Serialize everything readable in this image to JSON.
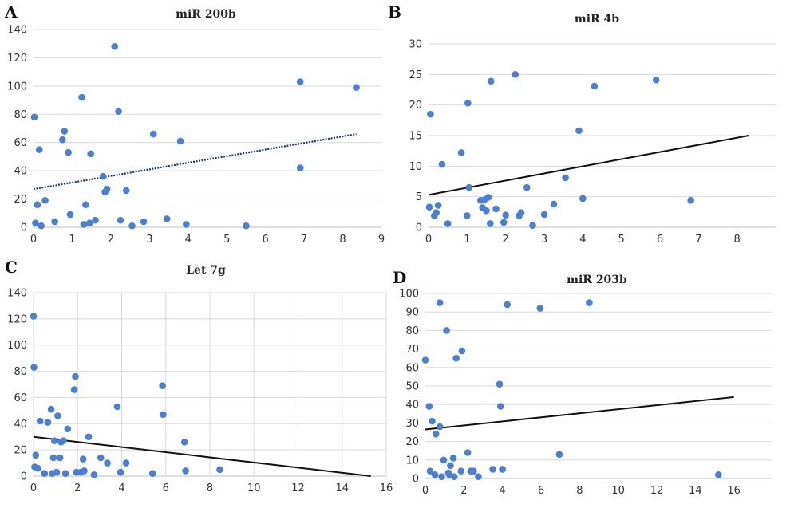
{
  "chart_data": [
    {
      "panel": "A",
      "type": "scatter",
      "title": "miR 200b",
      "xlabel": "",
      "ylabel": "",
      "xlim": [
        0,
        9
      ],
      "ylim": [
        0,
        140
      ],
      "xticks": [
        0,
        1,
        2,
        3,
        4,
        5,
        6,
        7,
        8,
        9
      ],
      "yticks": [
        0,
        20,
        40,
        60,
        80,
        100,
        120,
        140
      ],
      "grid": "horizontal",
      "trendline": {
        "style": "dotted",
        "color": "#1f3864",
        "points": [
          [
            0,
            27
          ],
          [
            8.35,
            66
          ]
        ]
      },
      "series": [
        {
          "color": "#4a7fd4",
          "points": [
            [
              0.02,
              78
            ],
            [
              0.05,
              3
            ],
            [
              0.1,
              16
            ],
            [
              0.15,
              55
            ],
            [
              0.2,
              1
            ],
            [
              0.3,
              19
            ],
            [
              0.55,
              4
            ],
            [
              0.75,
              62
            ],
            [
              0.8,
              68
            ],
            [
              0.9,
              53
            ],
            [
              0.95,
              9
            ],
            [
              1.25,
              92
            ],
            [
              1.3,
              2
            ],
            [
              1.35,
              16
            ],
            [
              1.45,
              3
            ],
            [
              1.48,
              52
            ],
            [
              1.6,
              5
            ],
            [
              1.8,
              36
            ],
            [
              1.85,
              25
            ],
            [
              1.9,
              27
            ],
            [
              2.1,
              128
            ],
            [
              2.2,
              82
            ],
            [
              2.25,
              5
            ],
            [
              2.4,
              26
            ],
            [
              2.55,
              1
            ],
            [
              2.85,
              4
            ],
            [
              3.1,
              66
            ],
            [
              3.45,
              6
            ],
            [
              3.8,
              61
            ],
            [
              3.95,
              2
            ],
            [
              5.5,
              1
            ],
            [
              6.9,
              103
            ],
            [
              6.9,
              42
            ],
            [
              8.35,
              99
            ]
          ]
        }
      ]
    },
    {
      "panel": "B",
      "type": "scatter",
      "title": "miR 4b",
      "xlabel": "",
      "ylabel": "",
      "xlim": [
        0,
        9
      ],
      "ylim": [
        0,
        30
      ],
      "xticks": [
        0,
        1,
        2,
        3,
        4,
        5,
        6,
        7,
        8
      ],
      "yticks": [
        0,
        5,
        10,
        15,
        20,
        25,
        30
      ],
      "grid": "horizontal",
      "trendline": {
        "style": "solid",
        "color": "#111111",
        "points": [
          [
            0,
            5.3
          ],
          [
            8.3,
            15
          ]
        ]
      },
      "series": [
        {
          "color": "#4a7fd4",
          "points": [
            [
              0.02,
              3.3
            ],
            [
              0.05,
              18.5
            ],
            [
              0.15,
              1.9
            ],
            [
              0.2,
              2.4
            ],
            [
              0.25,
              3.6
            ],
            [
              0.35,
              10.3
            ],
            [
              0.5,
              0.6
            ],
            [
              0.85,
              12.2
            ],
            [
              1.0,
              1.9
            ],
            [
              1.02,
              20.3
            ],
            [
              1.05,
              6.5
            ],
            [
              1.35,
              4.4
            ],
            [
              1.4,
              3.2
            ],
            [
              1.45,
              4.5
            ],
            [
              1.5,
              2.7
            ],
            [
              1.55,
              4.9
            ],
            [
              1.6,
              0.6
            ],
            [
              1.62,
              23.9
            ],
            [
              1.75,
              3.0
            ],
            [
              1.95,
              0.8
            ],
            [
              2.0,
              2.0
            ],
            [
              2.25,
              25.0
            ],
            [
              2.35,
              1.9
            ],
            [
              2.4,
              2.4
            ],
            [
              2.55,
              6.5
            ],
            [
              2.7,
              0.3
            ],
            [
              3.0,
              2.1
            ],
            [
              3.25,
              3.8
            ],
            [
              3.55,
              8.1
            ],
            [
              3.9,
              15.8
            ],
            [
              4.0,
              4.7
            ],
            [
              4.3,
              23.1
            ],
            [
              5.9,
              24.1
            ],
            [
              6.8,
              4.4
            ]
          ]
        }
      ]
    },
    {
      "panel": "C",
      "type": "scatter",
      "title": "Let 7g",
      "xlabel": "",
      "ylabel": "",
      "xlim": [
        0,
        16
      ],
      "ylim": [
        0,
        140
      ],
      "xticks": [
        0,
        2,
        4,
        6,
        8,
        10,
        12,
        14,
        16
      ],
      "yticks": [
        0,
        20,
        40,
        60,
        80,
        100,
        120,
        140
      ],
      "grid": "both",
      "trendline": {
        "style": "solid",
        "color": "#111111",
        "points": [
          [
            0,
            30
          ],
          [
            15.3,
            0
          ]
        ]
      },
      "series": [
        {
          "color": "#4a7fd4",
          "points": [
            [
              0.0,
              122
            ],
            [
              0.02,
              83
            ],
            [
              0.05,
              7
            ],
            [
              0.1,
              16
            ],
            [
              0.2,
              6
            ],
            [
              0.3,
              42
            ],
            [
              0.5,
              2
            ],
            [
              0.65,
              41
            ],
            [
              0.8,
              51
            ],
            [
              0.85,
              2
            ],
            [
              0.9,
              14
            ],
            [
              0.95,
              27
            ],
            [
              1.05,
              3
            ],
            [
              1.1,
              46
            ],
            [
              1.2,
              14
            ],
            [
              1.25,
              26
            ],
            [
              1.35,
              27
            ],
            [
              1.45,
              2
            ],
            [
              1.55,
              36
            ],
            [
              1.85,
              66
            ],
            [
              1.9,
              76
            ],
            [
              1.95,
              3
            ],
            [
              2.15,
              3
            ],
            [
              2.25,
              13
            ],
            [
              2.3,
              4
            ],
            [
              2.5,
              30
            ],
            [
              2.75,
              1
            ],
            [
              3.05,
              14
            ],
            [
              3.35,
              10
            ],
            [
              3.8,
              53
            ],
            [
              3.95,
              3
            ],
            [
              4.2,
              10
            ],
            [
              5.4,
              2
            ],
            [
              5.85,
              69
            ],
            [
              5.88,
              47
            ],
            [
              6.85,
              26
            ],
            [
              6.9,
              4
            ],
            [
              8.45,
              5
            ]
          ]
        }
      ]
    },
    {
      "panel": "D",
      "type": "scatter",
      "title": "miR 203b",
      "xlabel": "",
      "ylabel": "",
      "xlim": [
        0,
        18
      ],
      "ylim": [
        0,
        100
      ],
      "xticks": [
        0,
        2,
        4,
        6,
        8,
        10,
        12,
        14,
        16
      ],
      "yticks": [
        0,
        10,
        20,
        30,
        40,
        50,
        60,
        70,
        80,
        90,
        100
      ],
      "grid": "horizontal",
      "trendline": {
        "style": "solid",
        "color": "#111111",
        "points": [
          [
            0,
            26.5
          ],
          [
            16,
            44
          ]
        ]
      },
      "series": [
        {
          "color": "#4a7fd4",
          "points": [
            [
              0.0,
              64
            ],
            [
              0.2,
              39
            ],
            [
              0.25,
              4
            ],
            [
              0.35,
              31
            ],
            [
              0.5,
              2
            ],
            [
              0.55,
              24
            ],
            [
              0.75,
              28
            ],
            [
              0.75,
              95
            ],
            [
              0.85,
              1
            ],
            [
              0.95,
              10
            ],
            [
              1.1,
              80
            ],
            [
              1.2,
              3
            ],
            [
              1.25,
              2
            ],
            [
              1.3,
              7
            ],
            [
              1.45,
              11
            ],
            [
              1.5,
              1
            ],
            [
              1.6,
              65
            ],
            [
              1.85,
              4
            ],
            [
              1.9,
              69
            ],
            [
              2.2,
              14
            ],
            [
              2.35,
              4
            ],
            [
              2.5,
              4
            ],
            [
              2.75,
              1
            ],
            [
              3.5,
              5
            ],
            [
              3.85,
              51
            ],
            [
              3.9,
              39
            ],
            [
              4.0,
              5
            ],
            [
              4.25,
              94
            ],
            [
              5.95,
              92
            ],
            [
              6.95,
              13
            ],
            [
              8.5,
              95
            ],
            [
              15.2,
              2
            ]
          ]
        }
      ]
    }
  ]
}
